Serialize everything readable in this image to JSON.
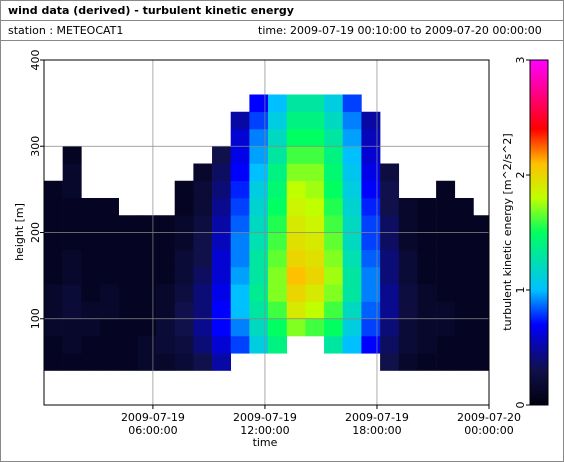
{
  "chart_data": {
    "type": "heatmap",
    "title": "wind data (derived) - turbulent kinetic energy",
    "station": "station : METEOCAT1",
    "period": "time: 2009-07-19 00:10:00 to 2009-07-20 00:00:00",
    "xlabel": "time",
    "ylabel": "height [m]",
    "colorbar_label": "turbulent kinetic energy [m^2/s^2]",
    "xlim": [
      "2009-07-19 00:10:00",
      "2009-07-20 00:00:00"
    ],
    "xticks": [
      {
        "value": "2009-07-19 06:00:00",
        "label": "2009-07-19\n06:00:00"
      },
      {
        "value": "2009-07-19 12:00:00",
        "label": "2009-07-19\n12:00:00"
      },
      {
        "value": "2009-07-19 18:00:00",
        "label": "2009-07-19\n18:00:00"
      },
      {
        "value": "2009-07-20 00:00:00",
        "label": "2009-07-20\n00:00:00"
      }
    ],
    "ylim": [
      0,
      400
    ],
    "yticks": [
      100,
      200,
      300,
      400
    ],
    "clim": [
      0,
      3
    ],
    "cticks": [
      0,
      1,
      2,
      3
    ],
    "grid": true,
    "colorscale": [
      [
        0,
        "#000010"
      ],
      [
        0.3,
        "#10104a"
      ],
      [
        0.7,
        "#0000ff"
      ],
      [
        1.0,
        "#00c0ff"
      ],
      [
        1.5,
        "#00ff60"
      ],
      [
        1.8,
        "#c0ff00"
      ],
      [
        2.1,
        "#ffc000"
      ],
      [
        2.4,
        "#ff0000"
      ],
      [
        2.7,
        "#ff0080"
      ],
      [
        3,
        "#ff00ff"
      ]
    ],
    "x": [
      "2009-07-19 00:10:00",
      "2009-07-19 01:10:00",
      "2009-07-19 02:10:00",
      "2009-07-19 03:10:00",
      "2009-07-19 04:10:00",
      "2009-07-19 05:10:00",
      "2009-07-19 06:10:00",
      "2009-07-19 07:10:00",
      "2009-07-19 08:10:00",
      "2009-07-19 09:10:00",
      "2009-07-19 10:10:00",
      "2009-07-19 11:10:00",
      "2009-07-19 12:10:00",
      "2009-07-19 13:10:00",
      "2009-07-19 14:10:00",
      "2009-07-19 15:10:00",
      "2009-07-19 16:10:00",
      "2009-07-19 17:10:00",
      "2009-07-19 18:10:00",
      "2009-07-19 19:10:00",
      "2009-07-19 20:10:00",
      "2009-07-19 21:10:00",
      "2009-07-19 22:10:00",
      "2009-07-19 23:10:00"
    ],
    "y": [
      40,
      60,
      80,
      100,
      120,
      140,
      160,
      180,
      200,
      220,
      240,
      260,
      280,
      300,
      320,
      340
    ],
    "z": [
      [
        0.1,
        0.1,
        0.15,
        0.15,
        0.15,
        0.1,
        0.1,
        0.1,
        0.1,
        0.1,
        0.1,
        null,
        null,
        null,
        null,
        null
      ],
      [
        0.1,
        0.15,
        0.15,
        0.2,
        0.2,
        0.15,
        0.15,
        0.1,
        0.1,
        0.1,
        0.15,
        0.15,
        0.1,
        null,
        null,
        null
      ],
      [
        0.1,
        0.1,
        0.15,
        0.15,
        0.1,
        0.1,
        0.1,
        0.1,
        0.1,
        0.1,
        null,
        null,
        null,
        null,
        null,
        null
      ],
      [
        0.1,
        0.1,
        0.1,
        0.15,
        0.15,
        0.1,
        0.1,
        0.1,
        0.1,
        0.1,
        null,
        null,
        null,
        null,
        null,
        null
      ],
      [
        0.1,
        0.1,
        0.1,
        0.1,
        0.1,
        0.1,
        0.1,
        0.1,
        0.1,
        null,
        null,
        null,
        null,
        null,
        null,
        null
      ],
      [
        0.15,
        0.15,
        0.1,
        0.1,
        0.1,
        0.1,
        0.1,
        0.1,
        0.1,
        null,
        null,
        null,
        null,
        null,
        null,
        null
      ],
      [
        0.15,
        0.2,
        0.2,
        0.15,
        0.15,
        0.1,
        0.1,
        0.1,
        0.1,
        null,
        null,
        null,
        null,
        null,
        null,
        null
      ],
      [
        0.2,
        0.25,
        0.3,
        0.3,
        0.25,
        0.2,
        0.2,
        0.15,
        0.15,
        0.1,
        0.1,
        null,
        null,
        null,
        null,
        null
      ],
      [
        0.3,
        0.4,
        0.45,
        0.4,
        0.4,
        0.35,
        0.3,
        0.3,
        0.25,
        0.2,
        0.2,
        0.15,
        null,
        null,
        null,
        null
      ],
      [
        0.5,
        0.6,
        0.7,
        0.7,
        0.65,
        0.6,
        0.6,
        0.55,
        0.5,
        0.45,
        0.4,
        0.35,
        0.3,
        null,
        null,
        null
      ],
      [
        null,
        0.8,
        0.9,
        1.0,
        1.0,
        0.95,
        0.9,
        0.9,
        0.85,
        0.8,
        0.75,
        0.7,
        0.65,
        0.6,
        0.5,
        null
      ],
      [
        null,
        1.1,
        1.2,
        1.3,
        1.35,
        1.3,
        1.3,
        1.25,
        1.2,
        1.15,
        1.1,
        1.0,
        0.95,
        0.9,
        0.8,
        0.7
      ],
      [
        null,
        1.4,
        1.5,
        1.6,
        1.7,
        1.7,
        1.65,
        1.6,
        1.55,
        1.5,
        1.45,
        1.4,
        1.3,
        1.2,
        1.1,
        1.0
      ],
      [
        null,
        null,
        1.7,
        1.9,
        2.0,
        2.1,
        2.0,
        1.95,
        1.9,
        1.85,
        1.8,
        1.7,
        1.6,
        1.5,
        1.4,
        1.3
      ],
      [
        null,
        null,
        1.6,
        1.8,
        1.9,
        2.0,
        1.95,
        1.9,
        1.85,
        1.8,
        1.75,
        1.7,
        1.6,
        1.5,
        1.4,
        1.3
      ],
      [
        null,
        1.3,
        1.5,
        1.6,
        1.7,
        1.75,
        1.7,
        1.65,
        1.6,
        1.55,
        1.5,
        1.45,
        1.4,
        1.3,
        1.2,
        1.1
      ],
      [
        null,
        1.0,
        1.1,
        1.2,
        1.3,
        1.3,
        1.25,
        1.2,
        1.2,
        1.15,
        1.1,
        1.05,
        1.0,
        0.95,
        0.9,
        0.8
      ],
      [
        null,
        0.7,
        0.8,
        0.85,
        0.9,
        0.9,
        0.85,
        0.8,
        0.8,
        0.75,
        0.7,
        0.65,
        0.6,
        0.55,
        0.5,
        null
      ],
      [
        0.3,
        0.35,
        0.4,
        0.45,
        0.45,
        0.4,
        0.4,
        0.35,
        0.35,
        0.3,
        0.3,
        0.25,
        null,
        null,
        null,
        null
      ],
      [
        0.15,
        0.2,
        0.2,
        0.25,
        0.25,
        0.2,
        0.2,
        0.15,
        0.15,
        0.15,
        null,
        null,
        null,
        null,
        null,
        null
      ],
      [
        0.1,
        0.15,
        0.15,
        0.15,
        0.15,
        0.1,
        0.1,
        0.1,
        0.1,
        0.1,
        null,
        null,
        null,
        null,
        null,
        null
      ],
      [
        0.1,
        0.1,
        0.15,
        0.15,
        0.1,
        0.1,
        0.1,
        0.1,
        0.1,
        0.1,
        0.1,
        null,
        null,
        null,
        null,
        null
      ],
      [
        0.1,
        0.1,
        0.1,
        0.1,
        0.1,
        0.1,
        0.1,
        0.1,
        0.1,
        0.1,
        null,
        null,
        null,
        null,
        null,
        null
      ],
      [
        0.1,
        0.1,
        0.1,
        0.1,
        0.1,
        0.1,
        0.1,
        0.1,
        0.1,
        null,
        null,
        null,
        null,
        null,
        null,
        null
      ]
    ]
  }
}
